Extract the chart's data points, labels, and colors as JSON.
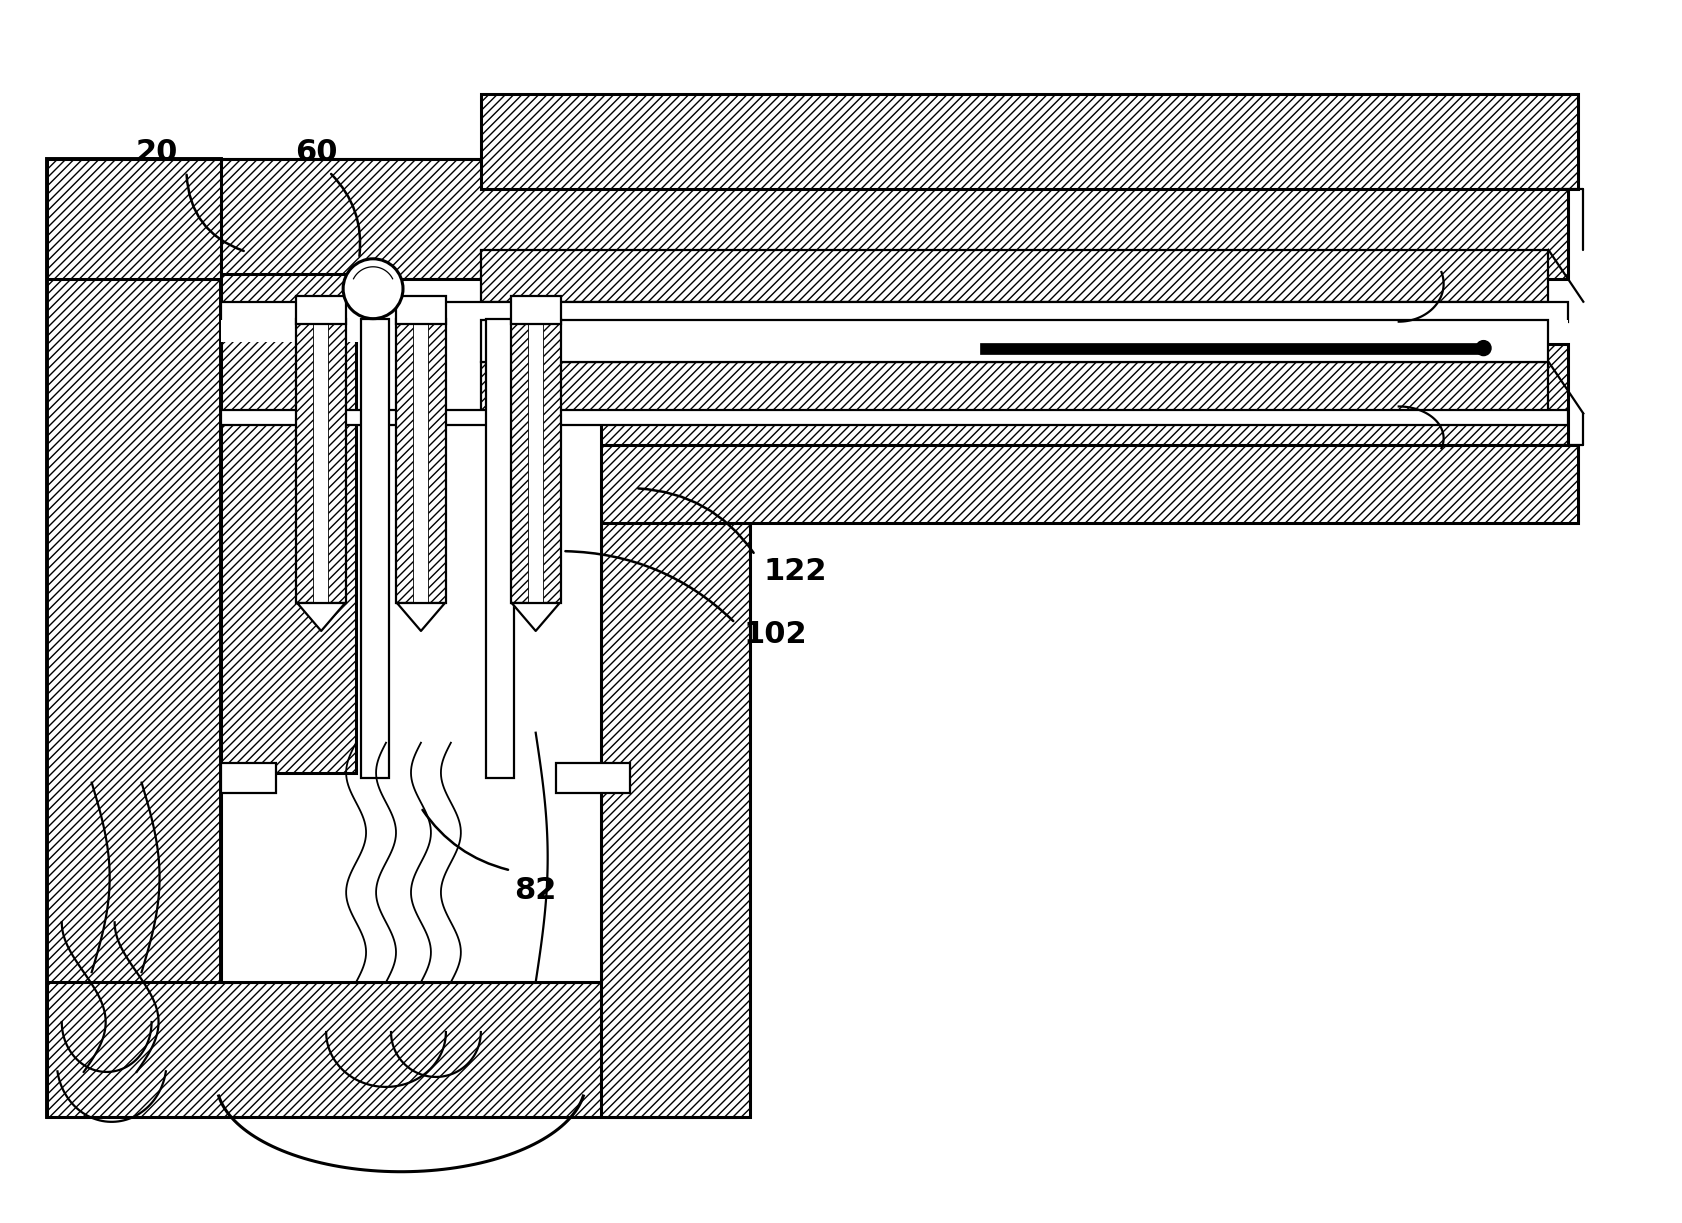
{
  "bg_color": "#ffffff",
  "line_color": "#000000",
  "fig_width": 16.83,
  "fig_height": 12.23,
  "dpi": 100,
  "label_fontsize": 22,
  "arrow_lw": 1.8
}
